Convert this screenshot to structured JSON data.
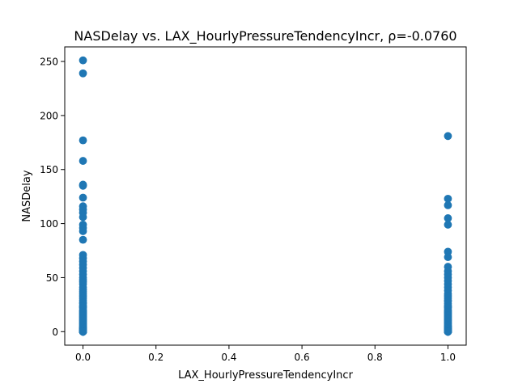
{
  "chart_data": {
    "type": "scatter",
    "title": "NASDelay vs. LAX_HourlyPressureTendencyIncr, ρ=-0.0760",
    "xlabel": "LAX_HourlyPressureTendencyIncr",
    "ylabel": "NASDelay",
    "xlim": [
      -0.05,
      1.05
    ],
    "ylim": [
      -12.5,
      263.5
    ],
    "xticks": [
      0.0,
      0.2,
      0.4,
      0.6,
      0.8,
      1.0
    ],
    "xtick_labels": [
      "0.0",
      "0.2",
      "0.4",
      "0.6",
      "0.8",
      "1.0"
    ],
    "yticks": [
      0,
      50,
      100,
      150,
      200,
      250
    ],
    "ytick_labels": [
      "0",
      "50",
      "100",
      "150",
      "200",
      "250"
    ],
    "grid": false,
    "marker_color": "#1f77b4",
    "series": [
      {
        "x": [
          0,
          0,
          0,
          0,
          0,
          0,
          0,
          0,
          0,
          0,
          0,
          0,
          0,
          0,
          0,
          0,
          0,
          0,
          0,
          0,
          0,
          0,
          0,
          0,
          0,
          0,
          0,
          0,
          0,
          0,
          0,
          0,
          0,
          0,
          0,
          0,
          0,
          0,
          0,
          0,
          0,
          0,
          0,
          0,
          0,
          0,
          0,
          0,
          0,
          0,
          0,
          0,
          0,
          0,
          0,
          0,
          0,
          0,
          0,
          0,
          0,
          0,
          0,
          0,
          0,
          0,
          0,
          0,
          0,
          0,
          0,
          0,
          0,
          0,
          0
        ],
        "y": [
          251,
          239,
          177,
          158,
          136,
          135,
          124,
          116,
          113,
          110,
          106,
          99,
          96,
          93,
          85,
          71,
          68,
          65,
          62,
          59,
          56,
          53,
          50,
          48,
          46,
          44,
          41,
          39,
          37,
          35,
          33,
          31,
          29,
          27,
          26,
          24,
          23,
          22,
          20,
          19,
          18,
          17,
          16,
          15,
          14,
          13,
          12,
          11,
          10,
          9,
          8,
          7,
          6,
          5,
          4,
          4,
          3,
          3,
          2,
          2,
          1,
          1,
          1,
          0,
          0,
          0,
          0,
          0,
          0,
          0,
          0,
          0,
          0,
          0,
          0
        ]
      },
      {
        "x": [
          1,
          1,
          1,
          1,
          1,
          1,
          1,
          1,
          1,
          1,
          1,
          1,
          1,
          1,
          1,
          1,
          1,
          1,
          1,
          1,
          1,
          1,
          1,
          1,
          1,
          1,
          1,
          1,
          1,
          1,
          1,
          1,
          1,
          1,
          1,
          1,
          1,
          1,
          1,
          1,
          1,
          1,
          1,
          1,
          1,
          1,
          1,
          1,
          1,
          1,
          1,
          1,
          1,
          1,
          1,
          1,
          1,
          1,
          1,
          1
        ],
        "y": [
          181,
          123,
          117,
          105,
          99,
          74,
          69,
          60,
          56,
          53,
          50,
          47,
          44,
          41,
          38,
          35,
          33,
          31,
          29,
          28,
          26,
          24,
          23,
          22,
          20,
          19,
          18,
          17,
          16,
          15,
          14,
          13,
          12,
          11,
          10,
          9,
          8,
          7,
          6,
          5,
          5,
          4,
          4,
          3,
          3,
          2,
          2,
          1,
          1,
          1,
          0,
          0,
          0,
          0,
          0,
          0,
          0,
          0,
          0,
          0
        ]
      }
    ]
  }
}
